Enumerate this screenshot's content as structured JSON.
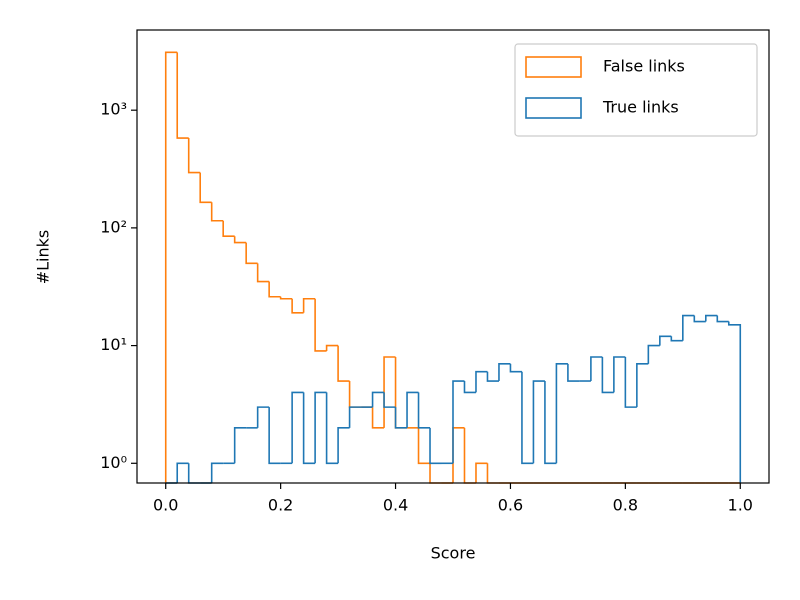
{
  "chart_data": {
    "type": "histogram",
    "x_label": "Score",
    "y_label": "#Links",
    "log_y": true,
    "legend": "upper right",
    "xlim": [
      -0.05,
      1.05
    ],
    "ylim": [
      0.68,
      4800
    ],
    "xticks": [
      {
        "value": 0,
        "label": "0.0"
      },
      0.2,
      0.4,
      0.6,
      0.8,
      {
        "value": 1,
        "label": "1.0"
      }
    ],
    "yticks": [
      {
        "value": 1,
        "label": "10⁰"
      },
      {
        "value": 10,
        "label": "10¹"
      },
      {
        "value": 100,
        "label": "10²"
      },
      {
        "value": 1000,
        "label": "10³"
      }
    ],
    "bins": [
      0,
      0.02,
      0.04,
      0.06,
      0.08,
      0.1,
      0.12,
      0.14,
      0.16,
      0.18,
      0.2,
      0.22,
      0.24,
      0.26,
      0.28,
      0.3,
      0.32,
      0.34,
      0.36,
      0.38,
      0.4,
      0.42,
      0.44,
      0.46,
      0.48,
      0.5,
      0.52,
      0.54,
      0.56,
      0.58,
      0.6,
      0.62,
      0.64,
      0.66,
      0.68,
      0.7,
      0.72,
      0.74,
      0.76,
      0.78,
      0.8,
      0.82,
      0.84,
      0.86,
      0.88,
      0.9,
      0.92,
      0.94,
      0.96,
      0.98,
      1
    ],
    "series": [
      {
        "name": "False links",
        "color": "#ff7f0e",
        "values": [
          3100,
          580,
          295,
          165,
          115,
          85,
          75,
          50,
          35,
          26,
          25,
          19,
          25,
          9,
          10,
          5,
          3,
          3,
          2,
          8,
          2,
          2,
          1,
          0,
          0,
          2,
          0,
          1,
          0,
          0,
          0,
          0,
          0,
          0,
          0,
          0,
          0,
          0,
          0,
          0,
          0,
          0,
          0,
          0,
          0,
          0,
          0,
          0,
          0,
          0
        ]
      },
      {
        "name": "True links",
        "color": "#1f77b4",
        "values": [
          0,
          1,
          0,
          0,
          1,
          1,
          2,
          2,
          3,
          1,
          1,
          4,
          1,
          4,
          1,
          2,
          3,
          3,
          4,
          3,
          2,
          4,
          2,
          1,
          1,
          5,
          4,
          6,
          5,
          7,
          6,
          1,
          5,
          1,
          7,
          5,
          5,
          8,
          4,
          8,
          3,
          7,
          10,
          12,
          11,
          18,
          16,
          18,
          16,
          15
        ]
      }
    ]
  }
}
